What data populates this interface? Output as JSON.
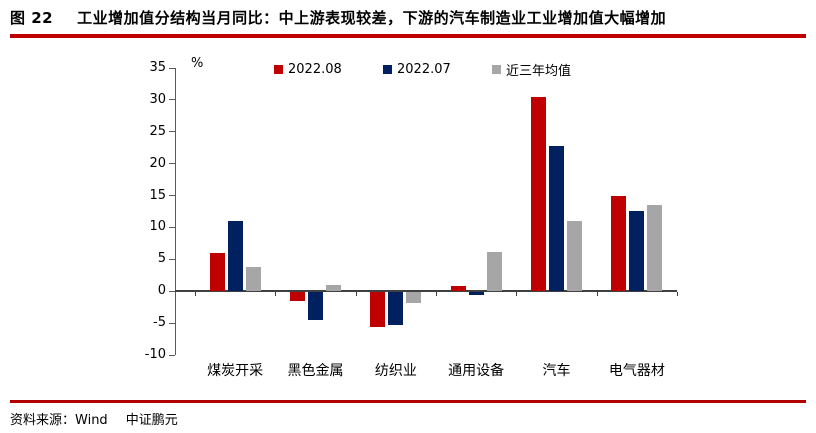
{
  "title": {
    "figure_label": "图 22",
    "text": "工业增加值分结构当月同比：中上游表现较差，下游的汽车制造业工业增加值大幅增加"
  },
  "footer": {
    "label": "资料来源：",
    "source1": "Wind",
    "source2": "中证鹏元"
  },
  "colors": {
    "accent_red": "#C00000",
    "series_red": "#C00000",
    "series_navy": "#002060",
    "series_gray": "#A6A6A6",
    "axis_line": "#595959",
    "zero_line": "#404040"
  },
  "chart_data": {
    "type": "bar",
    "title": "",
    "unit_label": "%",
    "categories": [
      "煤炭开采",
      "黑色金属",
      "纺织业",
      "通用设备",
      "汽车",
      "电气器材"
    ],
    "series": [
      {
        "name": "2022.08",
        "color": "#C00000",
        "values": [
          6.0,
          -1.3,
          -5.4,
          0.8,
          30.5,
          14.9
        ]
      },
      {
        "name": "2022.07",
        "color": "#002060",
        "values": [
          11.0,
          -4.4,
          -5.1,
          -0.5,
          22.7,
          12.6
        ]
      },
      {
        "name": "近三年均值",
        "color": "#A6A6A6",
        "values": [
          3.8,
          1.0,
          -1.7,
          6.2,
          11.0,
          13.5
        ]
      }
    ],
    "ylim": [
      -10,
      35
    ],
    "ytick_step": 5,
    "yticks": [
      35,
      30,
      25,
      20,
      15,
      10,
      5,
      0,
      -5,
      -10
    ],
    "grid": false,
    "legend_position": "top"
  }
}
